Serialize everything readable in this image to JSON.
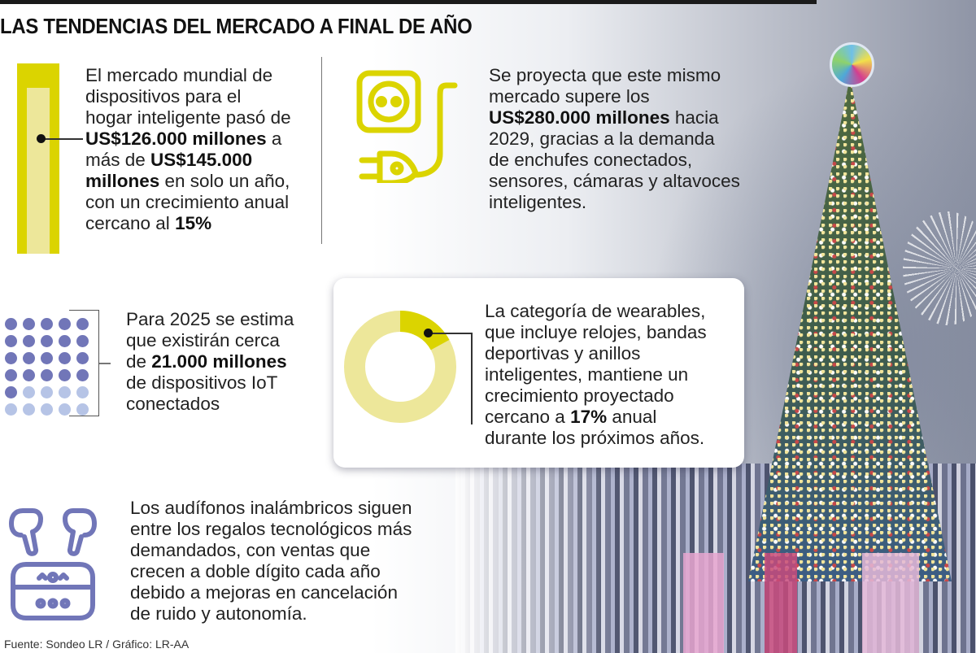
{
  "header": {
    "title": "LAS TENDENCIAS DEL MERCADO A FINAL DE AÑO"
  },
  "colors": {
    "yellow_strong": "#dbd400",
    "yellow_light": "#ede79a",
    "purple_dark": "#7176b8",
    "purple_light": "#b6c4e6",
    "text": "#222222"
  },
  "blocks": {
    "smart_home_market": {
      "icon": "yellow-bar-icon",
      "lines": [
        {
          "parts": [
            {
              "t": "El mercado mundial de",
              "b": false
            }
          ]
        },
        {
          "parts": [
            {
              "t": "dispositivos para el",
              "b": false
            }
          ]
        },
        {
          "parts": [
            {
              "t": "hogar inteligente pasó de",
              "b": false
            }
          ]
        },
        {
          "parts": [
            {
              "t": "US$126.000 millones",
              "b": true
            },
            {
              "t": " a",
              "b": false
            }
          ]
        },
        {
          "parts": [
            {
              "t": "más de ",
              "b": false
            },
            {
              "t": "US$145.000",
              "b": true
            }
          ]
        },
        {
          "parts": [
            {
              "t": "millones",
              "b": true
            },
            {
              "t": " en solo un año,",
              "b": false
            }
          ]
        },
        {
          "parts": [
            {
              "t": "con un crecimiento anual",
              "b": false
            }
          ]
        },
        {
          "parts": [
            {
              "t": "cercano al ",
              "b": false
            },
            {
              "t": "15%",
              "b": true
            }
          ]
        }
      ]
    },
    "projection_2029": {
      "icon": "plug-socket-icon",
      "lines": [
        {
          "parts": [
            {
              "t": "Se proyecta que este mismo",
              "b": false
            }
          ]
        },
        {
          "parts": [
            {
              "t": "mercado supere los",
              "b": false
            }
          ]
        },
        {
          "parts": [
            {
              "t": "US$280.000 millones",
              "b": true
            },
            {
              "t": " hacia",
              "b": false
            }
          ]
        },
        {
          "parts": [
            {
              "t": "2029, gracias a la demanda",
              "b": false
            }
          ]
        },
        {
          "parts": [
            {
              "t": "de enchufes conectados,",
              "b": false
            }
          ]
        },
        {
          "parts": [
            {
              "t": "sensores, cámaras y altavoces",
              "b": false
            }
          ]
        },
        {
          "parts": [
            {
              "t": "inteligentes.",
              "b": false
            }
          ]
        }
      ]
    },
    "iot_devices": {
      "icon": "dot-grid-icon",
      "dots": {
        "rows": 6,
        "cols": 5,
        "dark_count": 21
      },
      "lines": [
        {
          "parts": [
            {
              "t": "Para 2025 se estima",
              "b": false
            }
          ]
        },
        {
          "parts": [
            {
              "t": "que existirán cerca",
              "b": false
            }
          ]
        },
        {
          "parts": [
            {
              "t": "de ",
              "b": false
            },
            {
              "t": "21.000 millones",
              "b": true
            }
          ]
        },
        {
          "parts": [
            {
              "t": "de dispositivos IoT",
              "b": false
            }
          ]
        },
        {
          "parts": [
            {
              "t": "conectados",
              "b": false
            }
          ]
        }
      ]
    },
    "wearables": {
      "icon": "donut-chart-icon",
      "percent": 17,
      "lines": [
        {
          "parts": [
            {
              "t": "La categoría de wearables,",
              "b": false
            }
          ]
        },
        {
          "parts": [
            {
              "t": "que incluye relojes, bandas",
              "b": false
            }
          ]
        },
        {
          "parts": [
            {
              "t": "deportivas y anillos",
              "b": false
            }
          ]
        },
        {
          "parts": [
            {
              "t": "inteligentes, mantiene un",
              "b": false
            }
          ]
        },
        {
          "parts": [
            {
              "t": "crecimiento proyectado",
              "b": false
            }
          ]
        },
        {
          "parts": [
            {
              "t": "cercano a ",
              "b": false
            },
            {
              "t": "17%",
              "b": true
            },
            {
              "t": " anual",
              "b": false
            }
          ]
        },
        {
          "parts": [
            {
              "t": "durante los próximos años.",
              "b": false
            }
          ]
        }
      ]
    },
    "earbuds": {
      "icon": "wireless-earbuds-icon",
      "lines": [
        {
          "parts": [
            {
              "t": "Los audífonos inalámbricos siguen",
              "b": false
            }
          ]
        },
        {
          "parts": [
            {
              "t": "entre los regalos tecnológicos más",
              "b": false
            }
          ]
        },
        {
          "parts": [
            {
              "t": "demandados, con ventas que",
              "b": false
            }
          ]
        },
        {
          "parts": [
            {
              "t": "crecen a doble dígito cada año",
              "b": false
            }
          ]
        },
        {
          "parts": [
            {
              "t": "debido a mejoras en cancelación",
              "b": false
            }
          ]
        },
        {
          "parts": [
            {
              "t": "de ruido y autonomía.",
              "b": false
            }
          ]
        }
      ]
    }
  },
  "footer": {
    "source": "Fuente: Sondeo LR / Gráfico: LR-AA"
  }
}
